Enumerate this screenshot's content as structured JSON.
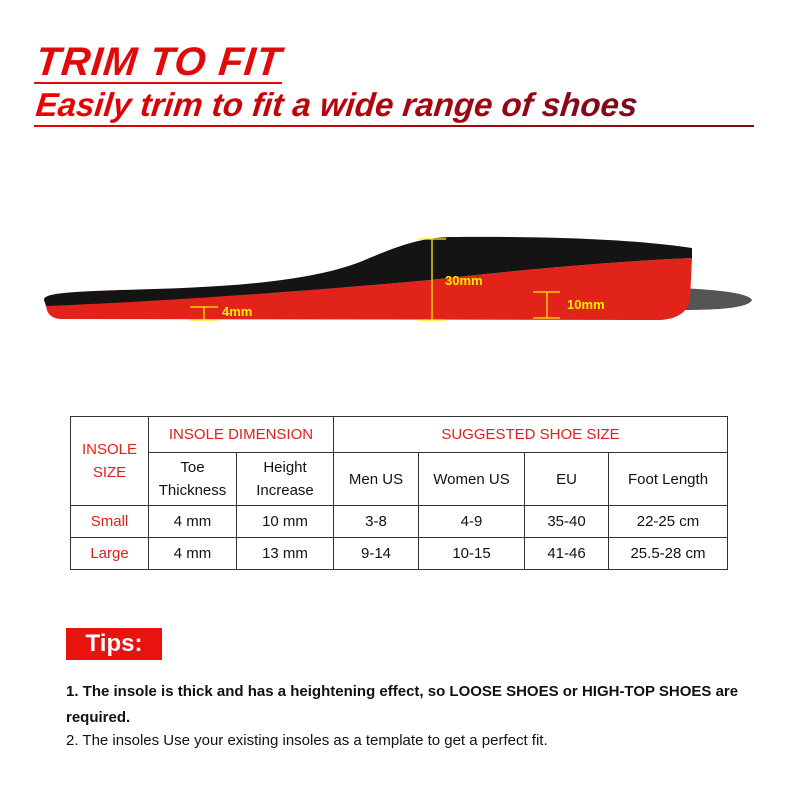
{
  "header": {
    "title": "TRIM TO FIT",
    "subtitle": "Easily trim to fit a wide range of shoes"
  },
  "diagram": {
    "labels": {
      "toe": "4mm",
      "arch": "30mm",
      "heel": "10mm"
    },
    "colors": {
      "side": "#e2231a",
      "top": "#141414",
      "marker": "#ffee00"
    }
  },
  "table": {
    "col_insole_size": "INSOLE SIZE",
    "group_dimension": "INSOLE DIMENSION",
    "group_shoe": "SUGGESTED SHOE SIZE",
    "sub_headers": [
      "Toe Thickness",
      "Height Increase",
      "Men US",
      "Women US",
      "EU",
      "Foot Length"
    ],
    "rows": [
      {
        "size": "Small",
        "cells": [
          "4 mm",
          "10 mm",
          "3-8",
          "4-9",
          "35-40",
          "22-25 cm"
        ]
      },
      {
        "size": "Large",
        "cells": [
          "4 mm",
          "13 mm",
          "9-14",
          "10-15",
          "41-46",
          "25.5-28 cm"
        ]
      }
    ]
  },
  "tips": {
    "label": "Tips:",
    "line1": "1. The insole is thick and has a heightening effect, so LOOSE SHOES or HIGH-TOP SHOES are required.",
    "line2": "2. The insoles Use your existing insoles as a template to get a perfect fit."
  }
}
